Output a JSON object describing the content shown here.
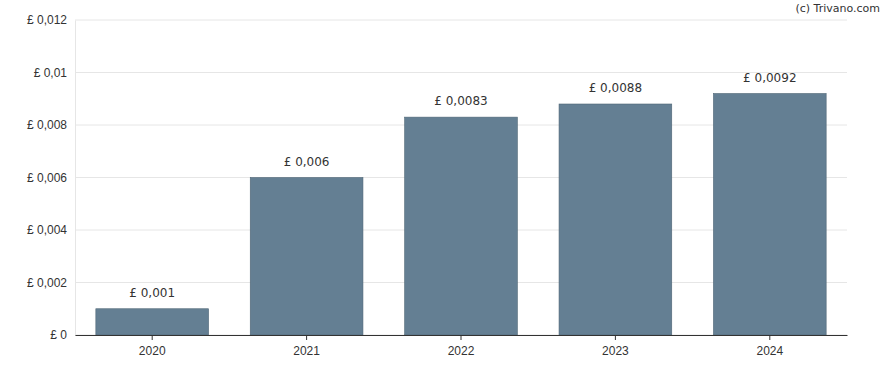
{
  "chart_data": {
    "type": "bar",
    "annotations": [
      "(c) Trivano.com"
    ],
    "categories": [
      "2020",
      "2021",
      "2022",
      "2023",
      "2024"
    ],
    "values": [
      0.001,
      0.006,
      0.0083,
      0.0088,
      0.0092
    ],
    "value_labels": [
      "£ 0,001",
      "£ 0,006",
      "£ 0,0083",
      "£ 0,0088",
      "£ 0,0092"
    ],
    "data_labels": true,
    "color": "#647f93",
    "ylim": [
      0,
      0.012
    ],
    "yticks": [
      {
        "value": 0,
        "label": "£ 0"
      },
      {
        "value": 0.002,
        "label": "£ 0,002"
      },
      {
        "value": 0.004,
        "label": "£ 0,004"
      },
      {
        "value": 0.006,
        "label": "£ 0,006"
      },
      {
        "value": 0.008,
        "label": "£ 0,008"
      },
      {
        "value": 0.01,
        "label": "£ 0,01"
      },
      {
        "value": 0.012,
        "label": "£ 0,012"
      }
    ],
    "grid": true
  }
}
